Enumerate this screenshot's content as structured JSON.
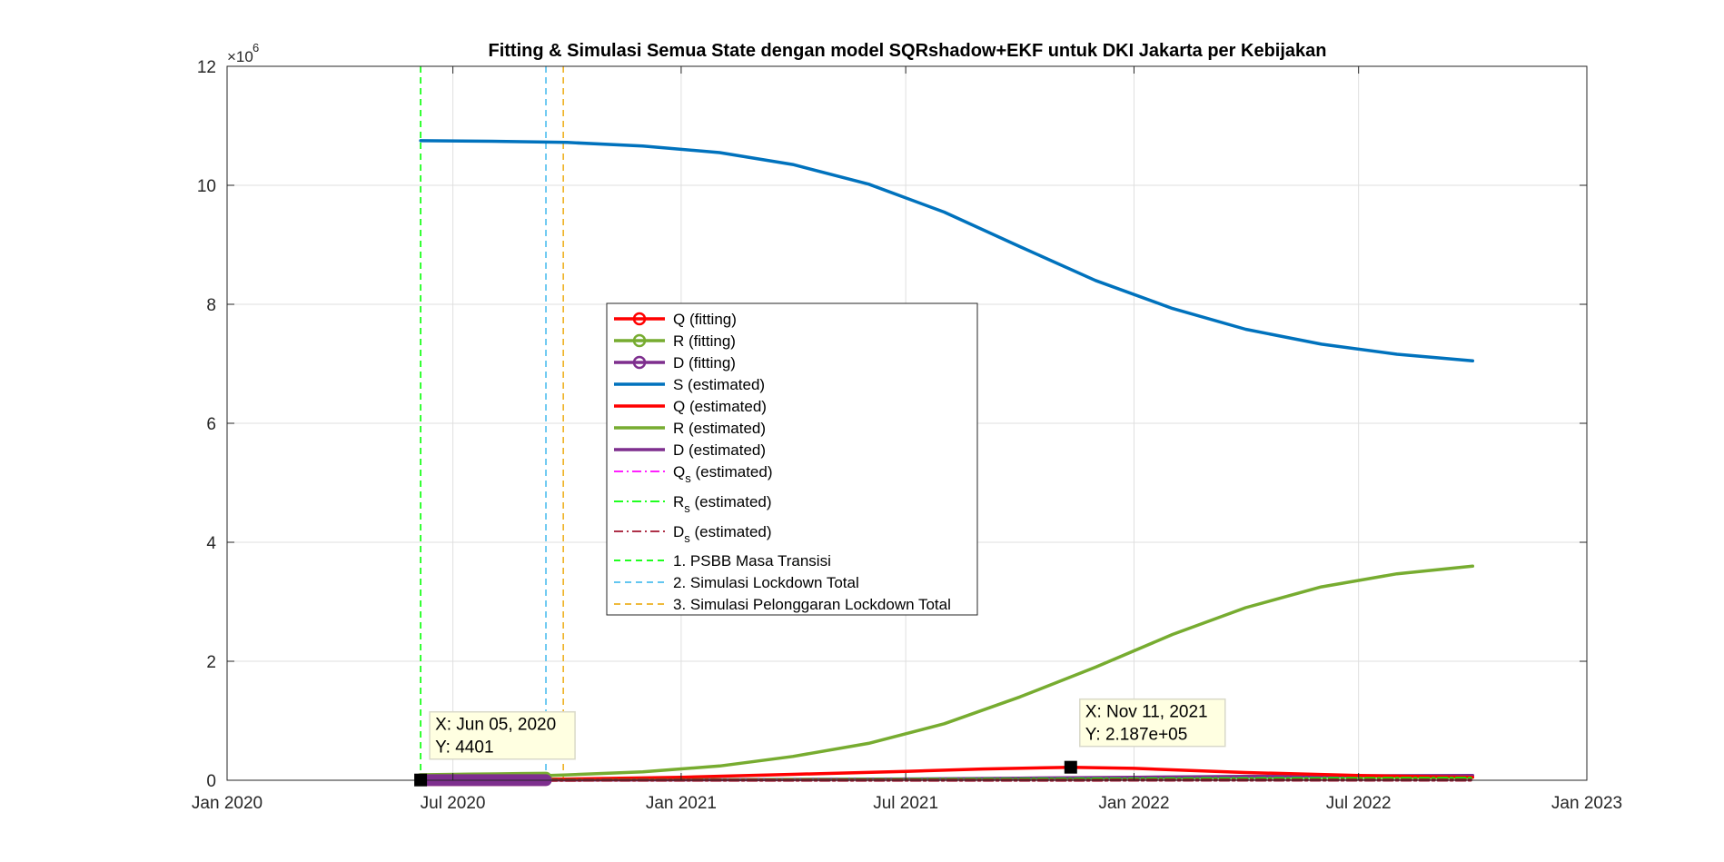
{
  "chart_data": {
    "type": "line",
    "title": "Fitting & Simulasi Semua State dengan model SQRshadow+EKF untuk DKI Jakarta per Kebijakan",
    "xlabel": "",
    "ylabel": "",
    "y_exponent_base": "×10",
    "y_exponent_power": "6",
    "xlim": [
      "2020-01-01",
      "2023-01-01"
    ],
    "ylim": [
      0,
      12
    ],
    "y_units": "millions",
    "grid": true,
    "legend_placement": "center",
    "x_ticks": [
      {
        "date": "2020-01-01",
        "label": "Jan 2020"
      },
      {
        "date": "2020-07-01",
        "label": "Jul 2020"
      },
      {
        "date": "2021-01-01",
        "label": "Jan 2021"
      },
      {
        "date": "2021-07-01",
        "label": "Jul 2021"
      },
      {
        "date": "2022-01-01",
        "label": "Jan 2022"
      },
      {
        "date": "2022-07-01",
        "label": "Jul 2022"
      },
      {
        "date": "2023-01-01",
        "label": "Jan 2023"
      }
    ],
    "y_ticks": [
      {
        "value": 0,
        "label": "0"
      },
      {
        "value": 2,
        "label": "2"
      },
      {
        "value": 4,
        "label": "4"
      },
      {
        "value": 6,
        "label": "6"
      },
      {
        "value": 8,
        "label": "8"
      },
      {
        "value": 10,
        "label": "10"
      },
      {
        "value": 12,
        "label": "12"
      }
    ],
    "series": [
      {
        "name": "Q (fitting)",
        "color": "#ff0000",
        "style": "solid-marker",
        "x": [
          "2020-06-05",
          "2020-06-25",
          "2020-07-15",
          "2020-08-05",
          "2020-08-25",
          "2020-09-14"
        ],
        "y": [
          0.0044,
          0.0046,
          0.0048,
          0.005,
          0.0052,
          0.0054
        ]
      },
      {
        "name": "R (fitting)",
        "color": "#77ac30",
        "style": "solid-marker",
        "x": [
          "2020-06-05",
          "2020-06-25",
          "2020-07-15",
          "2020-08-05",
          "2020-08-25",
          "2020-09-14"
        ],
        "y": [
          0.02,
          0.025,
          0.03,
          0.035,
          0.04,
          0.045
        ]
      },
      {
        "name": "D (fitting)",
        "color": "#7e2f8e",
        "style": "solid-marker",
        "x": [
          "2020-06-05",
          "2020-06-25",
          "2020-07-15",
          "2020-08-05",
          "2020-08-25",
          "2020-09-14"
        ],
        "y": [
          0.001,
          0.001,
          0.0012,
          0.0013,
          0.0014,
          0.0015
        ]
      },
      {
        "name": "S (estimated)",
        "color": "#0072bd",
        "style": "solid",
        "x": [
          "2020-06-05",
          "2020-08-01",
          "2020-10-01",
          "2020-12-01",
          "2021-02-01",
          "2021-04-01",
          "2021-06-01",
          "2021-08-01",
          "2021-10-01",
          "2021-12-01",
          "2022-02-01",
          "2022-04-01",
          "2022-06-01",
          "2022-08-01",
          "2022-10-01"
        ],
        "y": [
          10.75,
          10.74,
          10.72,
          10.66,
          10.55,
          10.35,
          10.02,
          9.55,
          8.97,
          8.4,
          7.93,
          7.58,
          7.33,
          7.16,
          7.05
        ]
      },
      {
        "name": "Q (estimated)",
        "color": "#ff0000",
        "style": "solid",
        "x": [
          "2020-06-05",
          "2020-10-01",
          "2021-01-01",
          "2021-04-01",
          "2021-07-01",
          "2021-09-01",
          "2021-11-11",
          "2022-01-01",
          "2022-04-01",
          "2022-07-01",
          "2022-10-01"
        ],
        "y": [
          0.0044,
          0.02,
          0.05,
          0.1,
          0.15,
          0.19,
          0.2187,
          0.2,
          0.13,
          0.08,
          0.05
        ]
      },
      {
        "name": "R (estimated)",
        "color": "#77ac30",
        "style": "solid",
        "x": [
          "2020-06-05",
          "2020-08-01",
          "2020-10-01",
          "2020-12-01",
          "2021-02-01",
          "2021-04-01",
          "2021-06-01",
          "2021-08-01",
          "2021-10-01",
          "2021-12-01",
          "2022-02-01",
          "2022-04-01",
          "2022-06-01",
          "2022-08-01",
          "2022-10-01"
        ],
        "y": [
          0.02,
          0.05,
          0.09,
          0.14,
          0.24,
          0.4,
          0.62,
          0.95,
          1.4,
          1.9,
          2.45,
          2.9,
          3.25,
          3.47,
          3.6
        ]
      },
      {
        "name": "D (estimated)",
        "color": "#7e2f8e",
        "style": "solid",
        "x": [
          "2020-06-05",
          "2020-10-01",
          "2021-01-01",
          "2021-04-01",
          "2021-07-01",
          "2021-10-01",
          "2022-01-01",
          "2022-04-01",
          "2022-07-01",
          "2022-10-01"
        ],
        "y": [
          0.001,
          0.003,
          0.007,
          0.013,
          0.022,
          0.035,
          0.05,
          0.065,
          0.075,
          0.08
        ]
      },
      {
        "name": "Q",
        "subscript": "s",
        "name_suffix": " (estimated)",
        "color": "#ff00ff",
        "style": "dashdot",
        "x": [
          "2020-06-05",
          "2021-01-01",
          "2021-07-01",
          "2022-01-01",
          "2022-10-01"
        ],
        "y": [
          0.001,
          0.004,
          0.008,
          0.01,
          0.008
        ]
      },
      {
        "name": "R",
        "subscript": "s",
        "name_suffix": " (estimated)",
        "color": "#00ff00",
        "style": "dashdot",
        "x": [
          "2020-06-05",
          "2021-01-01",
          "2021-07-01",
          "2022-01-01",
          "2022-10-01"
        ],
        "y": [
          0.002,
          0.006,
          0.012,
          0.02,
          0.03
        ]
      },
      {
        "name": "D",
        "subscript": "s",
        "name_suffix": " (estimated)",
        "color": "#a2142f",
        "style": "dashdot",
        "x": [
          "2020-06-05",
          "2021-01-01",
          "2021-07-01",
          "2022-01-01",
          "2022-10-01"
        ],
        "y": [
          0.0,
          0.001,
          0.002,
          0.003,
          0.004
        ]
      }
    ],
    "vertical_lines": [
      {
        "name": "1. PSBB Masa Transisi",
        "date": "2020-06-05",
        "color": "#00ff00"
      },
      {
        "name": "2. Simulasi Lockdown Total",
        "date": "2020-09-14",
        "color": "#4dbeee"
      },
      {
        "name": "3. Simulasi Pelonggaran Lockdown Total",
        "date": "2020-09-28",
        "color": "#edb120"
      }
    ],
    "annotations": [
      {
        "date": "2020-06-05",
        "value": 0.0044,
        "line1": "X: Jun 05, 2020",
        "line2": "Y: 4401"
      },
      {
        "date": "2021-11-11",
        "value": 0.2187,
        "line1": "X: Nov 11, 2021",
        "line2": "Y: 2.187e+05"
      }
    ]
  }
}
